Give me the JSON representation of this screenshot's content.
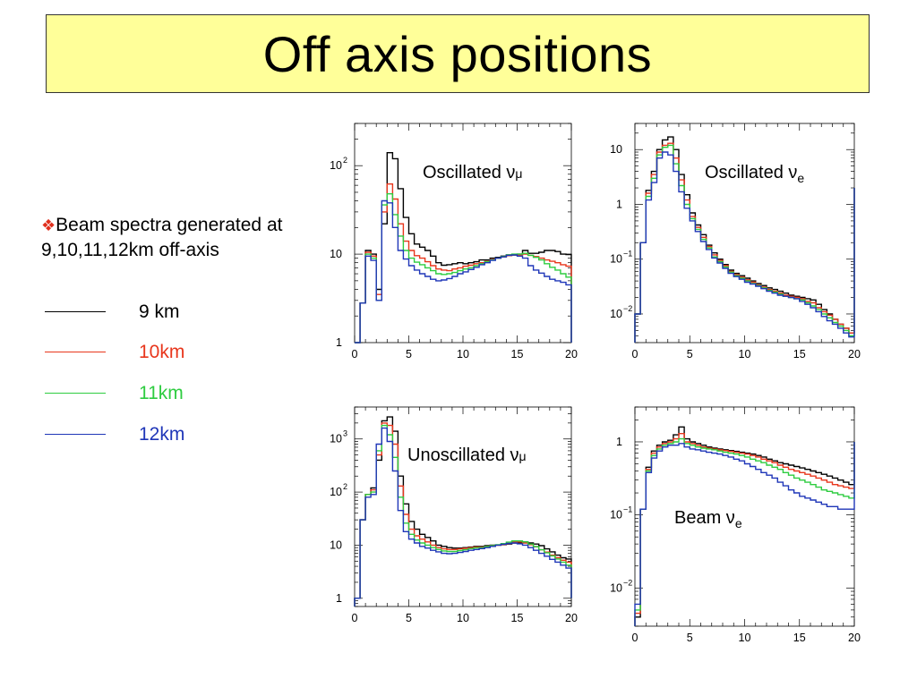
{
  "title": "Off axis positions",
  "bullet": {
    "mark": "❖",
    "text": "Beam spectra generated at 9,10,11,12km off-axis"
  },
  "legend": [
    {
      "label": "9 km",
      "color": "#000000"
    },
    {
      "label": "10km",
      "color": "#e8361c"
    },
    {
      "label": "11km",
      "color": "#2ecc40"
    },
    {
      "label": "12km",
      "color": "#1f36b8"
    }
  ],
  "colors": {
    "9km": "#000000",
    "10km": "#e8361c",
    "11km": "#2ecc40",
    "12km": "#1f36b8"
  },
  "chart_data": [
    {
      "type": "line",
      "label": "Oscillated ν",
      "label_sub": "μ",
      "label_sub_style": "normal",
      "log_y": true,
      "xlim": [
        0,
        20
      ],
      "ylim": [
        1,
        300
      ],
      "x_ticks": [
        0,
        5,
        10,
        15,
        20
      ],
      "y_ticks": [
        {
          "value": 1,
          "base": "1",
          "exp": ""
        },
        {
          "value": 10,
          "base": "10",
          "exp": ""
        },
        {
          "value": 100,
          "base": "10",
          "exp": "2"
        }
      ],
      "bin_width": 0.5,
      "series": [
        {
          "key": "9km",
          "values": [
            1,
            2.8,
            11,
            10,
            4,
            22,
            140,
            120,
            55,
            26,
            17,
            13,
            12,
            11,
            9.5,
            8,
            7.5,
            7.6,
            7.8,
            8,
            7.8,
            8,
            8.2,
            8.6,
            8.6,
            9,
            9.2,
            9.5,
            9.8,
            9.8,
            10,
            11,
            10.2,
            10.2,
            10.5,
            11,
            11,
            10.7,
            10,
            9.9,
            1
          ]
        },
        {
          "key": "10km",
          "values": [
            1,
            2.8,
            10.5,
            9.5,
            3.5,
            30,
            62,
            42,
            22,
            14,
            11,
            9.6,
            9,
            8.2,
            7.4,
            6.8,
            6.6,
            6.5,
            6.8,
            7,
            7.3,
            7.5,
            7.8,
            8,
            8.3,
            8.7,
            9,
            9.3,
            9.6,
            9.8,
            9.8,
            10,
            9.7,
            9.4,
            9,
            8.6,
            8.3,
            8,
            7.6,
            7.3,
            1
          ]
        },
        {
          "key": "11km",
          "values": [
            1,
            2.8,
            10,
            9,
            3,
            36,
            48,
            28,
            16,
            11,
            9,
            8.1,
            7.6,
            7,
            6.5,
            6,
            5.9,
            6,
            6.2,
            6.5,
            6.8,
            7,
            7.4,
            7.8,
            8.2,
            8.6,
            9,
            9.4,
            9.8,
            10,
            10,
            10.2,
            9.7,
            9.2,
            8.6,
            7.8,
            7.1,
            6.6,
            6,
            5.5,
            1
          ]
        },
        {
          "key": "12km",
          "values": [
            1,
            2.8,
            9.5,
            8.5,
            3,
            40,
            38,
            20,
            11,
            8.8,
            7.4,
            6.6,
            6,
            5.6,
            5.2,
            5,
            5.1,
            5.3,
            5.6,
            6,
            6.3,
            6.7,
            7.1,
            7.6,
            8,
            8.5,
            9,
            9.3,
            9.7,
            9.8,
            9.5,
            9,
            7.4,
            6.6,
            6.1,
            5.6,
            5.2,
            5,
            4.8,
            4.5,
            1
          ]
        }
      ]
    },
    {
      "type": "line",
      "label": "Oscillated ν",
      "label_sub": "e",
      "label_sub_style": "subscript",
      "log_y": true,
      "xlim": [
        0,
        20
      ],
      "ylim": [
        0.003,
        30
      ],
      "x_ticks": [
        0,
        5,
        10,
        15,
        20
      ],
      "y_ticks": [
        {
          "value": 0.01,
          "base": "10",
          "exp": "−2"
        },
        {
          "value": 0.1,
          "base": "10",
          "exp": "−1"
        },
        {
          "value": 1,
          "base": "1",
          "exp": ""
        },
        {
          "value": 10,
          "base": "10",
          "exp": ""
        }
      ],
      "bin_width": 0.5,
      "series": [
        {
          "key": "9km",
          "values": [
            0.01,
            0.2,
            1.8,
            4,
            10,
            15,
            17,
            10,
            3.5,
            1.5,
            0.7,
            0.42,
            0.28,
            0.18,
            0.13,
            0.1,
            0.08,
            0.063,
            0.055,
            0.05,
            0.045,
            0.04,
            0.036,
            0.033,
            0.03,
            0.028,
            0.026,
            0.024,
            0.022,
            0.021,
            0.02,
            0.019,
            0.018,
            0.015,
            0.012,
            0.01,
            0.008,
            0.0065,
            0.0055,
            0.0045,
            2
          ]
        },
        {
          "key": "10km",
          "values": [
            0.01,
            0.2,
            1.6,
            3.5,
            9,
            12,
            13,
            7,
            2.8,
            1.2,
            0.6,
            0.38,
            0.25,
            0.17,
            0.12,
            0.095,
            0.076,
            0.06,
            0.052,
            0.047,
            0.042,
            0.038,
            0.034,
            0.031,
            0.028,
            0.026,
            0.024,
            0.022,
            0.021,
            0.02,
            0.019,
            0.017,
            0.016,
            0.013,
            0.011,
            0.0095,
            0.008,
            0.0065,
            0.0055,
            0.0045,
            2
          ]
        },
        {
          "key": "11km",
          "values": [
            0.01,
            0.2,
            1.4,
            3,
            8,
            11,
            12,
            5.5,
            2.2,
            1,
            0.55,
            0.35,
            0.23,
            0.16,
            0.11,
            0.09,
            0.072,
            0.058,
            0.05,
            0.045,
            0.04,
            0.036,
            0.033,
            0.03,
            0.027,
            0.025,
            0.023,
            0.021,
            0.02,
            0.019,
            0.018,
            0.016,
            0.014,
            0.012,
            0.01,
            0.0085,
            0.007,
            0.006,
            0.005,
            0.004,
            2
          ]
        },
        {
          "key": "12km",
          "values": [
            0.01,
            0.2,
            1.2,
            2.5,
            7,
            9,
            8,
            4,
            1.7,
            0.85,
            0.5,
            0.32,
            0.21,
            0.15,
            0.105,
            0.085,
            0.068,
            0.055,
            0.048,
            0.043,
            0.038,
            0.035,
            0.032,
            0.029,
            0.026,
            0.024,
            0.022,
            0.021,
            0.02,
            0.019,
            0.017,
            0.015,
            0.013,
            0.011,
            0.009,
            0.0075,
            0.0065,
            0.0055,
            0.0045,
            0.0038,
            2
          ]
        }
      ]
    },
    {
      "type": "line",
      "label": "Unoscillated ν",
      "label_sub": "μ",
      "label_sub_style": "normal",
      "log_y": true,
      "xlim": [
        0,
        20
      ],
      "ylim": [
        0.7,
        4000
      ],
      "x_ticks": [
        0,
        5,
        10,
        15,
        20
      ],
      "y_ticks": [
        {
          "value": 1,
          "base": "1",
          "exp": ""
        },
        {
          "value": 10,
          "base": "10",
          "exp": ""
        },
        {
          "value": 100,
          "base": "10",
          "exp": "2"
        },
        {
          "value": 1000,
          "base": "10",
          "exp": "3"
        }
      ],
      "bin_width": 0.5,
      "series": [
        {
          "key": "9km",
          "values": [
            1,
            30,
            90,
            120,
            400,
            2200,
            2600,
            1400,
            200,
            60,
            28,
            20,
            16,
            14,
            12,
            10,
            9.5,
            9,
            8.8,
            8.8,
            9,
            9.2,
            9.5,
            9.5,
            9.8,
            10,
            10,
            10.2,
            10.5,
            11,
            11,
            11.5,
            11,
            10.5,
            9.8,
            8.5,
            7.5,
            6.5,
            5.8,
            5.5,
            1
          ]
        },
        {
          "key": "10km",
          "values": [
            1,
            30,
            90,
            110,
            500,
            2000,
            1800,
            800,
            130,
            38,
            20,
            15,
            13,
            11.5,
            10,
            9,
            8.5,
            8.3,
            8.3,
            8.5,
            8.7,
            9,
            9.2,
            9.2,
            9.5,
            9.8,
            10,
            10.3,
            10.8,
            11.5,
            11.5,
            11,
            10.2,
            9.3,
            8.2,
            7.4,
            6.5,
            5.8,
            5.2,
            4.8,
            1
          ]
        },
        {
          "key": "11km",
          "values": [
            1,
            30,
            90,
            100,
            600,
            1800,
            1200,
            450,
            80,
            26,
            16,
            12.5,
            11,
            10,
            9,
            8.3,
            7.8,
            7.6,
            7.6,
            7.9,
            8.2,
            8.6,
            8.9,
            9,
            9.4,
            9.8,
            10.2,
            10.7,
            11.4,
            12,
            12,
            11.5,
            10.5,
            9.4,
            8.2,
            7.2,
            6.3,
            5.5,
            4.8,
            4.2,
            1
          ]
        },
        {
          "key": "12km",
          "values": [
            1,
            30,
            80,
            90,
            800,
            1600,
            900,
            250,
            45,
            18,
            13,
            11,
            9.5,
            8.8,
            8,
            7.5,
            7,
            6.9,
            7,
            7.3,
            7.6,
            8,
            8.3,
            8.6,
            9,
            9.5,
            10,
            10.4,
            10.8,
            11,
            10.6,
            10,
            9,
            8,
            7,
            6.2,
            5.4,
            4.8,
            4.2,
            3.7,
            1
          ]
        }
      ]
    },
    {
      "type": "line",
      "label": "Beam ν",
      "label_sub": "e",
      "label_sub_style": "subscript",
      "log_y": true,
      "xlim": [
        0,
        20
      ],
      "ylim": [
        0.003,
        3
      ],
      "x_ticks": [
        0,
        5,
        10,
        15,
        20
      ],
      "y_ticks": [
        {
          "value": 0.01,
          "base": "10",
          "exp": "−2"
        },
        {
          "value": 0.1,
          "base": "10",
          "exp": "−1"
        },
        {
          "value": 1,
          "base": "1",
          "exp": ""
        }
      ],
      "bin_width": 0.5,
      "series": [
        {
          "key": "9km",
          "values": [
            0.004,
            0.12,
            0.45,
            0.75,
            0.9,
            1,
            1.05,
            1.25,
            1.6,
            1.1,
            1,
            0.95,
            0.9,
            0.85,
            0.82,
            0.8,
            0.78,
            0.76,
            0.74,
            0.72,
            0.7,
            0.68,
            0.65,
            0.62,
            0.58,
            0.55,
            0.52,
            0.5,
            0.48,
            0.46,
            0.44,
            0.42,
            0.4,
            0.38,
            0.36,
            0.34,
            0.32,
            0.3,
            0.28,
            0.26,
            1
          ]
        },
        {
          "key": "10km",
          "values": [
            0.0045,
            0.12,
            0.42,
            0.7,
            0.85,
            0.95,
            1,
            1.1,
            1.3,
            1,
            0.95,
            0.9,
            0.85,
            0.82,
            0.8,
            0.78,
            0.76,
            0.74,
            0.72,
            0.7,
            0.68,
            0.65,
            0.62,
            0.58,
            0.55,
            0.52,
            0.48,
            0.45,
            0.42,
            0.4,
            0.38,
            0.36,
            0.34,
            0.32,
            0.3,
            0.28,
            0.26,
            0.25,
            0.24,
            0.23,
            1
          ]
        },
        {
          "key": "11km",
          "values": [
            0.005,
            0.12,
            0.4,
            0.65,
            0.8,
            0.9,
            0.95,
            1,
            1.1,
            0.95,
            0.9,
            0.85,
            0.82,
            0.8,
            0.78,
            0.75,
            0.72,
            0.7,
            0.68,
            0.65,
            0.62,
            0.58,
            0.55,
            0.52,
            0.48,
            0.45,
            0.42,
            0.38,
            0.35,
            0.32,
            0.3,
            0.28,
            0.26,
            0.24,
            0.22,
            0.21,
            0.2,
            0.19,
            0.18,
            0.17,
            1
          ]
        },
        {
          "key": "12km",
          "values": [
            0.006,
            0.12,
            0.38,
            0.6,
            0.75,
            0.85,
            0.9,
            0.9,
            0.95,
            0.85,
            0.8,
            0.78,
            0.75,
            0.72,
            0.7,
            0.68,
            0.65,
            0.62,
            0.58,
            0.55,
            0.5,
            0.46,
            0.42,
            0.38,
            0.35,
            0.32,
            0.28,
            0.25,
            0.22,
            0.2,
            0.18,
            0.17,
            0.16,
            0.15,
            0.14,
            0.13,
            0.13,
            0.12,
            0.12,
            0.12,
            1
          ]
        }
      ]
    }
  ]
}
